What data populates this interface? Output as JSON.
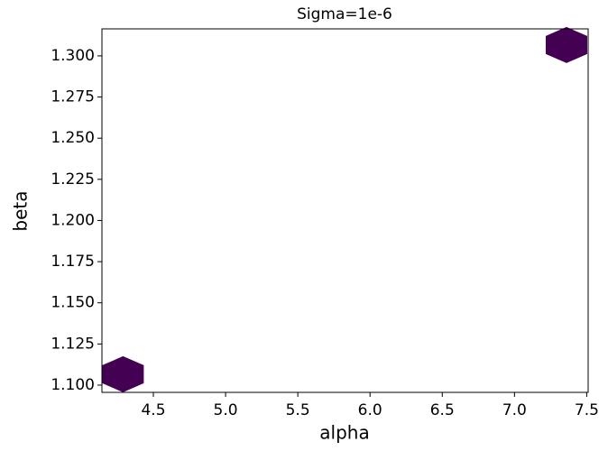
{
  "chart_data": {
    "type": "hexbin",
    "title": "Sigma=1e-6",
    "x_label": "alpha",
    "y_label": "beta",
    "x": [
      4.29,
      7.36
    ],
    "y": [
      1.1066,
      1.3066
    ],
    "color": "#440154",
    "xlim": [
      4.144,
      7.51
    ],
    "ylim": [
      1.0956,
      1.3164
    ],
    "xticks": [
      4.5,
      {
        "value": 5.0,
        "label": "5.0"
      },
      5.5,
      {
        "value": 6.0,
        "label": "6.0"
      },
      6.5,
      {
        "value": 7.0,
        "label": "7.0"
      },
      7.5
    ],
    "yticks": [
      {
        "value": 1.1,
        "label": "1.100"
      },
      {
        "value": 1.125,
        "label": "1.125"
      },
      {
        "value": 1.15,
        "label": "1.150"
      },
      {
        "value": 1.175,
        "label": "1.175"
      },
      {
        "value": 1.2,
        "label": "1.200"
      },
      {
        "value": 1.225,
        "label": "1.225"
      },
      {
        "value": 1.25,
        "label": "1.250"
      },
      {
        "value": 1.275,
        "label": "1.275"
      },
      {
        "value": 1.3,
        "label": "1.300"
      }
    ]
  }
}
